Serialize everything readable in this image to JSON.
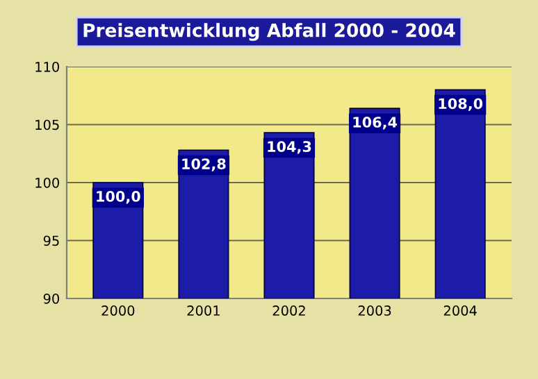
{
  "chart_data": {
    "type": "bar",
    "title": "Preisentwicklung Abfall 2000 - 2004",
    "categories": [
      "2000",
      "2001",
      "2002",
      "2003",
      "2004"
    ],
    "values": [
      100.0,
      102.8,
      104.3,
      106.4,
      108.0
    ],
    "value_labels": [
      "100,0",
      "102,8",
      "104,3",
      "106,4",
      "108,0"
    ],
    "color": "#1c1ca8",
    "ylim": [
      90,
      110
    ],
    "yticks": [
      90,
      95,
      100,
      105,
      110
    ],
    "grid": "y"
  }
}
